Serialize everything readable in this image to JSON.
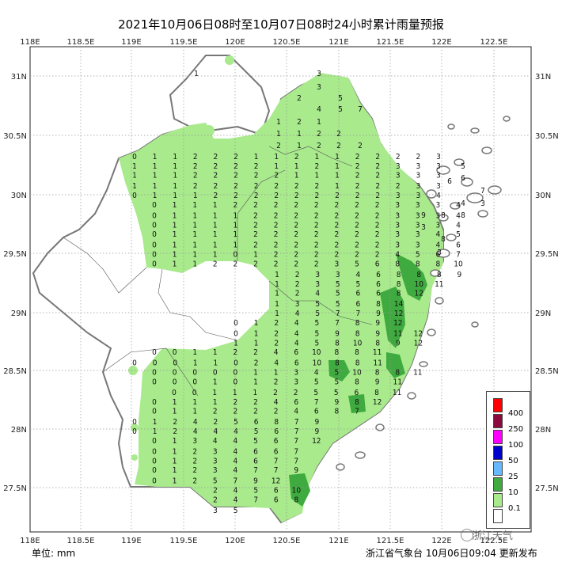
{
  "title": "2021年10月06日08时至10月07日08时24小时累计雨量预报",
  "axes": {
    "lon_labels": [
      "118E",
      "118.5E",
      "119E",
      "119.5E",
      "120E",
      "120.5E",
      "121E",
      "121.5E",
      "122E",
      "122.5E"
    ],
    "lat_labels": [
      "31N",
      "30.5N",
      "30N",
      "29.5N",
      "29N",
      "28.5N",
      "28N",
      "27.5N"
    ]
  },
  "legend": {
    "labels": [
      "400",
      "250",
      "100",
      "50",
      "25",
      "10",
      "0.1"
    ],
    "colors": [
      "#ff0000",
      "#8b0a3e",
      "#ff00ff",
      "#0000cc",
      "#66b8ff",
      "#3faa3f",
      "#a8ea8c",
      "#ffffff"
    ]
  },
  "unit": "单位: mm",
  "footer": "浙江省气象台  10月06日09:04  更新发布",
  "watermark": "浙江天气",
  "colors": {
    "light_rain": "#a8ea8c",
    "moderate_rain": "#3faa3f",
    "land": "#ffffff",
    "coast": "#777777"
  },
  "grid_values": [
    {
      "row": "30.33",
      "vals": [
        "0",
        "1",
        "1",
        "2",
        "2",
        "2",
        "1",
        "1",
        "2",
        "1",
        "1",
        "2",
        "2",
        "2",
        "2",
        "3"
      ]
    },
    {
      "row": "30.25",
      "vals": [
        "1",
        "1",
        "1",
        "2",
        "2",
        "2",
        "2",
        "1",
        "1",
        "2",
        "1",
        "2",
        "2",
        "3",
        "3",
        "3"
      ]
    },
    {
      "row": "30.17",
      "vals": [
        "1",
        "1",
        "1",
        "2",
        "2",
        "2",
        "2",
        "2",
        "1",
        "1",
        "1",
        "2",
        "2",
        "3",
        "3",
        "3"
      ]
    },
    {
      "row": "30.08",
      "vals": [
        "1",
        "1",
        "1",
        "2",
        "2",
        "2",
        "2",
        "2",
        "2",
        "2",
        "1",
        "2",
        "2",
        "2",
        "3",
        "3"
      ]
    },
    {
      "row": "30.00",
      "vals": [
        "0",
        "1",
        "1",
        "1",
        "2",
        "2",
        "2",
        "2",
        "2",
        "2",
        "2",
        "2",
        "2",
        "3",
        "3",
        "4"
      ]
    },
    {
      "row": "29.92",
      "vals": [
        "0",
        "1",
        "1",
        "1",
        "2",
        "2",
        "2",
        "2",
        "2",
        "2",
        "2",
        "2",
        "3",
        "3",
        "3",
        "4"
      ]
    },
    {
      "row": "29.83",
      "vals": [
        "0",
        "1",
        "1",
        "1",
        "1",
        "2",
        "2",
        "2",
        "2",
        "2",
        "2",
        "2",
        "3",
        "3",
        "3",
        "4"
      ]
    },
    {
      "row": "29.75",
      "vals": [
        "0",
        "1",
        "1",
        "1",
        "1",
        "2",
        "2",
        "2",
        "2",
        "2",
        "2",
        "2",
        "3",
        "3",
        "3",
        "4"
      ]
    },
    {
      "row": "29.67",
      "vals": [
        "0",
        "1",
        "1",
        "1",
        "1",
        "2",
        "2",
        "2",
        "2",
        "2",
        "2",
        "2",
        "3",
        "3",
        "4",
        "5"
      ]
    },
    {
      "row": "29.58",
      "vals": [
        "0",
        "1",
        "1",
        "1",
        "1",
        "2",
        "2",
        "2",
        "2",
        "2",
        "2",
        "2",
        "3",
        "3",
        "4",
        "6"
      ]
    },
    {
      "row": "29.50",
      "vals": [
        "0",
        "1",
        "1",
        "1",
        "0",
        "1",
        "2",
        "2",
        "2",
        "2",
        "2",
        "2",
        "4",
        "5",
        "6",
        "7"
      ]
    },
    {
      "row": "29.42",
      "vals": [
        "0",
        "1",
        "1",
        "2",
        "2",
        "2",
        "2",
        "2",
        "2",
        "3",
        "5",
        "6",
        "8",
        "8",
        "8",
        "10"
      ]
    },
    {
      "row": "29.33",
      "vals": [
        "1",
        "2",
        "3",
        "3",
        "4",
        "6",
        "8",
        "8",
        "8",
        "9"
      ]
    },
    {
      "row": "29.25",
      "vals": [
        "1",
        "2",
        "3",
        "5",
        "5",
        "6",
        "8",
        "10",
        "11"
      ]
    },
    {
      "row": "29.17",
      "vals": [
        "1",
        "2",
        "4",
        "5",
        "6",
        "6",
        "8",
        "12"
      ]
    },
    {
      "row": "29.08",
      "vals": [
        "1",
        "3",
        "5",
        "5",
        "6",
        "8",
        "14"
      ]
    },
    {
      "row": "29.00",
      "vals": [
        "1",
        "4",
        "5",
        "7",
        "7",
        "9",
        "12"
      ]
    },
    {
      "row": "28.92",
      "vals": [
        "0",
        "1",
        "2",
        "4",
        "5",
        "7",
        "8",
        "9",
        "12"
      ]
    },
    {
      "row": "28.83",
      "vals": [
        "0",
        "1",
        "2",
        "4",
        "5",
        "9",
        "8",
        "9",
        "11",
        "12"
      ]
    },
    {
      "row": "28.75",
      "vals": [
        "1",
        "1",
        "2",
        "4",
        "5",
        "8",
        "10",
        "8",
        "9",
        "12"
      ]
    },
    {
      "row": "28.67",
      "vals": [
        "0",
        "0",
        "1",
        "1",
        "2",
        "2",
        "4",
        "6",
        "10",
        "8",
        "8",
        "11"
      ]
    },
    {
      "row": "28.58",
      "vals": [
        "0",
        "0",
        "0",
        "1",
        "1",
        "0",
        "2",
        "4",
        "6",
        "10",
        "8",
        "8",
        "11"
      ]
    },
    {
      "row": "28.50",
      "vals": [
        "0",
        "0",
        "0",
        "0",
        "0",
        "1",
        "1",
        "3",
        "4",
        "5",
        "10",
        "8",
        "8",
        "11"
      ]
    },
    {
      "row": "28.42",
      "vals": [
        "0",
        "0",
        "0",
        "1",
        "0",
        "1",
        "2",
        "3",
        "5",
        "5",
        "8",
        "9",
        "11"
      ]
    },
    {
      "row": "28.33",
      "vals": [
        "0",
        "0",
        "1",
        "1",
        "1",
        "2",
        "2",
        "5",
        "5",
        "6",
        "8",
        "11"
      ]
    },
    {
      "row": "28.25",
      "vals": [
        "0",
        "1",
        "1",
        "1",
        "2",
        "2",
        "4",
        "6",
        "7",
        "9",
        "8",
        "12"
      ]
    },
    {
      "row": "28.17",
      "vals": [
        "0",
        "1",
        "1",
        "2",
        "2",
        "2",
        "2",
        "4",
        "6",
        "8",
        "7"
      ]
    },
    {
      "row": "28.08",
      "vals": [
        "0",
        "1",
        "2",
        "4",
        "2",
        "5",
        "6",
        "8",
        "7",
        "9"
      ]
    },
    {
      "row": "28.00",
      "vals": [
        "0",
        "1",
        "2",
        "4",
        "4",
        "4",
        "5",
        "6",
        "7",
        "9"
      ]
    },
    {
      "row": "27.92",
      "vals": [
        "0",
        "1",
        "3",
        "4",
        "4",
        "5",
        "6",
        "7",
        "12"
      ]
    },
    {
      "row": "27.83",
      "vals": [
        "0",
        "1",
        "2",
        "3",
        "4",
        "6",
        "6",
        "7"
      ]
    },
    {
      "row": "27.75",
      "vals": [
        "0",
        "1",
        "2",
        "3",
        "4",
        "6",
        "7",
        "7"
      ]
    },
    {
      "row": "27.67",
      "vals": [
        "0",
        "1",
        "2",
        "3",
        "4",
        "7",
        "7",
        "9"
      ]
    },
    {
      "row": "27.58",
      "vals": [
        "0",
        "1",
        "2",
        "5",
        "7",
        "9",
        "12"
      ]
    },
    {
      "row": "27.50",
      "vals": [
        "2",
        "4",
        "5",
        "6",
        "10"
      ]
    },
    {
      "row": "27.42",
      "vals": [
        "2",
        "4",
        "7",
        "6",
        "8"
      ]
    },
    {
      "row": "27.33",
      "vals": [
        "3",
        "5"
      ]
    }
  ],
  "extra_values": [
    "1",
    "3",
    "3",
    "2",
    "5",
    "4",
    "5",
    "7",
    "1",
    "2",
    "1",
    "1",
    "1",
    "2",
    "2",
    "2",
    "1",
    "2",
    "2",
    "2",
    "5",
    "6",
    "6",
    "9",
    "8",
    "8",
    "3",
    "7",
    "4",
    "8",
    "3",
    "3"
  ]
}
